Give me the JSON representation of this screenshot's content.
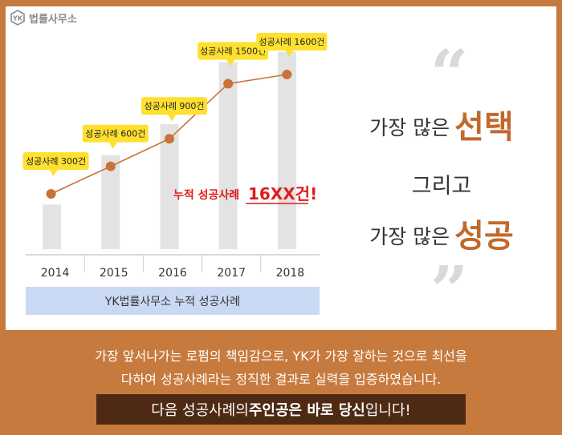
{
  "logo": {
    "text": "법률사무소",
    "mark": "YK"
  },
  "chart_data": {
    "type": "bar",
    "categories": [
      "2014",
      "2015",
      "2016",
      "2017",
      "2018"
    ],
    "values": [
      300,
      600,
      900,
      1500,
      1600
    ],
    "line_values": [
      300,
      600,
      900,
      1500,
      1600
    ],
    "callouts": [
      "성공사례 300건",
      "성공사례 600건",
      "성공사례 900건",
      "성공사례 1500건",
      "성공사례 1600건"
    ],
    "annotation": {
      "prefix": "누적 성공사례",
      "highlight": "16XX건!"
    },
    "legend_label": "YK법률사무소 누적 성공사례",
    "colors": {
      "bar": "#e3e3e3",
      "line": "#c8733a",
      "marker": "#c8733a",
      "callout": "#ffe030",
      "annotation": "#e11b1b",
      "legend_bg": "#c9d9f3"
    }
  },
  "right_panel": {
    "line1_prefix": "가장 많은",
    "line1_emphasis": "선택",
    "line2": "그리고",
    "line3_prefix": "가장 많은",
    "line3_emphasis": "성공",
    "open_quote": "“",
    "close_quote": "”"
  },
  "bottom": {
    "line1": "가장 앞서나가는 로펌의 책임감으로, YK가 가장 잘하는 것으로 최선을",
    "line2": "다하여 성공사례라는 정직한 결과로 실력을 입증하였습니다.",
    "banner_a": "다음 성공사례의 ",
    "banner_b": "주인공은 바로 당신",
    "banner_c": "입니다!"
  }
}
